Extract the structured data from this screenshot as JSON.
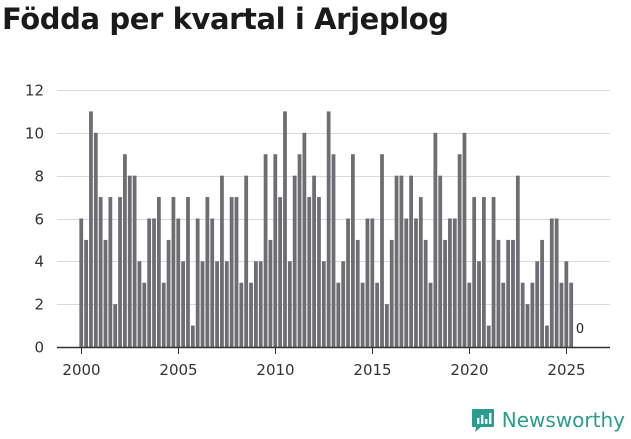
{
  "title": "Födda per kvartal i Arjeplog",
  "brand": {
    "name": "Newsworthy",
    "color": "#2a9d8f"
  },
  "chart_data": {
    "type": "bar",
    "title": "Födda per kvartal i Arjeplog",
    "xlabel": "",
    "ylabel": "",
    "x_start": 2000.0,
    "x_step": 0.25,
    "xlim": [
      1998.75,
      2027.25
    ],
    "ylim": [
      0,
      12
    ],
    "yticks": [
      0,
      2,
      4,
      6,
      8,
      10,
      12
    ],
    "xticks": [
      2000,
      2005,
      2010,
      2015,
      2020,
      2025
    ],
    "ytick_labels": [
      "0",
      "2",
      "4",
      "6",
      "8",
      "10",
      "12"
    ],
    "xtick_labels": [
      "2000",
      "2005",
      "2010",
      "2015",
      "2020",
      "2025"
    ],
    "grid": true,
    "bar_color": "#6d6d72",
    "last_value_label": "0",
    "values": [
      6,
      5,
      11,
      10,
      7,
      5,
      7,
      2,
      7,
      9,
      8,
      8,
      4,
      3,
      6,
      6,
      7,
      3,
      5,
      7,
      6,
      4,
      7,
      1,
      6,
      4,
      7,
      6,
      4,
      8,
      4,
      7,
      7,
      3,
      8,
      3,
      4,
      4,
      9,
      5,
      9,
      7,
      11,
      4,
      8,
      9,
      10,
      7,
      8,
      7,
      4,
      11,
      9,
      3,
      4,
      6,
      9,
      5,
      3,
      6,
      6,
      3,
      9,
      2,
      5,
      8,
      8,
      6,
      8,
      6,
      7,
      5,
      3,
      10,
      8,
      5,
      6,
      6,
      9,
      10,
      3,
      7,
      4,
      7,
      1,
      7,
      5,
      3,
      5,
      5,
      8,
      3,
      2,
      3,
      4,
      5,
      1,
      6,
      6,
      3,
      4,
      3,
      0
    ]
  }
}
